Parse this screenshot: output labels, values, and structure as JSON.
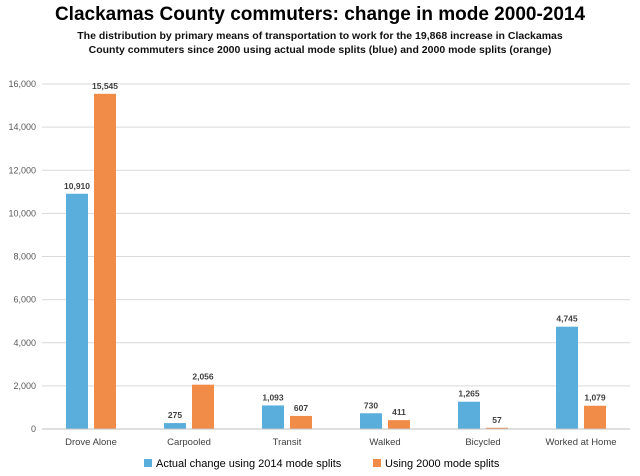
{
  "chart_data": {
    "type": "bar",
    "title": "Clackamas County commuters: change in mode 2000-2014",
    "subtitle": "The distribution by primary means of transportation to work for the 19,868 increase in Clackamas County commuters since 2000 using actual mode splits (blue) and 2000 mode splits (orange)",
    "categories": [
      "Drove Alone",
      "Carpooled",
      "Transit",
      "Walked",
      "Bicycled",
      "Worked at Home"
    ],
    "series": [
      {
        "name": "Actual change using 2014 mode splits",
        "color": "#5aaedc",
        "values": [
          10910,
          275,
          1093,
          730,
          1265,
          4745
        ],
        "labels": [
          "10,910",
          "275",
          "1,093",
          "730",
          "1,265",
          "4,745"
        ]
      },
      {
        "name": "Using 2000 mode splits",
        "color": "#f08c48",
        "values": [
          15545,
          2056,
          607,
          411,
          57,
          1079
        ],
        "labels": [
          "15,545",
          "2,056",
          "607",
          "411",
          "57",
          "1,079"
        ]
      }
    ],
    "yticks": [
      0,
      2000,
      4000,
      6000,
      8000,
      10000,
      12000,
      14000,
      16000
    ],
    "ytick_labels": [
      "0",
      "2,000",
      "4,000",
      "6,000",
      "8,000",
      "10,000",
      "12,000",
      "14,000",
      "16,000"
    ],
    "ylim": [
      0,
      16000
    ],
    "grid": true,
    "legend_position": "bottom"
  }
}
